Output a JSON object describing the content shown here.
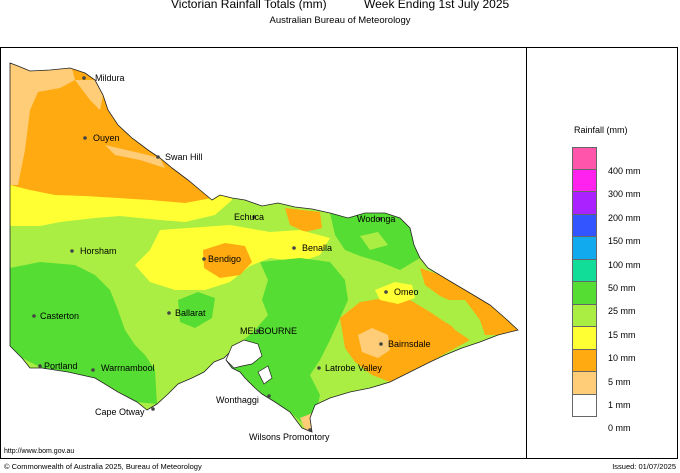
{
  "header": {
    "title": "Victorian Rainfall Totals (mm)",
    "week": "Week Ending 1st July 2025",
    "subtitle": "Australian Bureau of Meteorology"
  },
  "legend": {
    "title": "Rainfall (mm)",
    "items": [
      {
        "label": "400 mm",
        "color": "#ff55aa"
      },
      {
        "label": "300 mm",
        "color": "#ff22ee"
      },
      {
        "label": "200 mm",
        "color": "#aa22ff"
      },
      {
        "label": "150 mm",
        "color": "#3355ff"
      },
      {
        "label": "100 mm",
        "color": "#11aaee"
      },
      {
        "label": "50 mm",
        "color": "#11dd99"
      },
      {
        "label": "25 mm",
        "color": "#55dd33"
      },
      {
        "label": "15 mm",
        "color": "#aaee44"
      },
      {
        "label": "10 mm",
        "color": "#ffff33"
      },
      {
        "label": "5 mm",
        "color": "#ffaa11"
      },
      {
        "label": "1 mm",
        "color": "#ffcc77"
      },
      {
        "label": "0 mm",
        "color": "#ffffff"
      }
    ]
  },
  "towns": [
    {
      "name": "Mildura"
    },
    {
      "name": "Ouyen"
    },
    {
      "name": "Swan Hill"
    },
    {
      "name": "Echuca"
    },
    {
      "name": "Wodonga"
    },
    {
      "name": "Horsham"
    },
    {
      "name": "Benalla"
    },
    {
      "name": "Bendigo"
    },
    {
      "name": "Omeo"
    },
    {
      "name": "Casterton"
    },
    {
      "name": "Ballarat"
    },
    {
      "name": "MELBOURNE"
    },
    {
      "name": "Bairnsdale"
    },
    {
      "name": "Portland"
    },
    {
      "name": "Warrnambool"
    },
    {
      "name": "Latrobe Valley"
    },
    {
      "name": "Wonthaggi"
    },
    {
      "name": "Cape Otway"
    },
    {
      "name": "Wilsons Promontory"
    }
  ],
  "footer": {
    "url": "http://www.bom.gov.au",
    "copyright": "© Commonwealth of Australia 2025, Bureau of Meteorology",
    "issued": "Issued: 01/07/2025"
  }
}
